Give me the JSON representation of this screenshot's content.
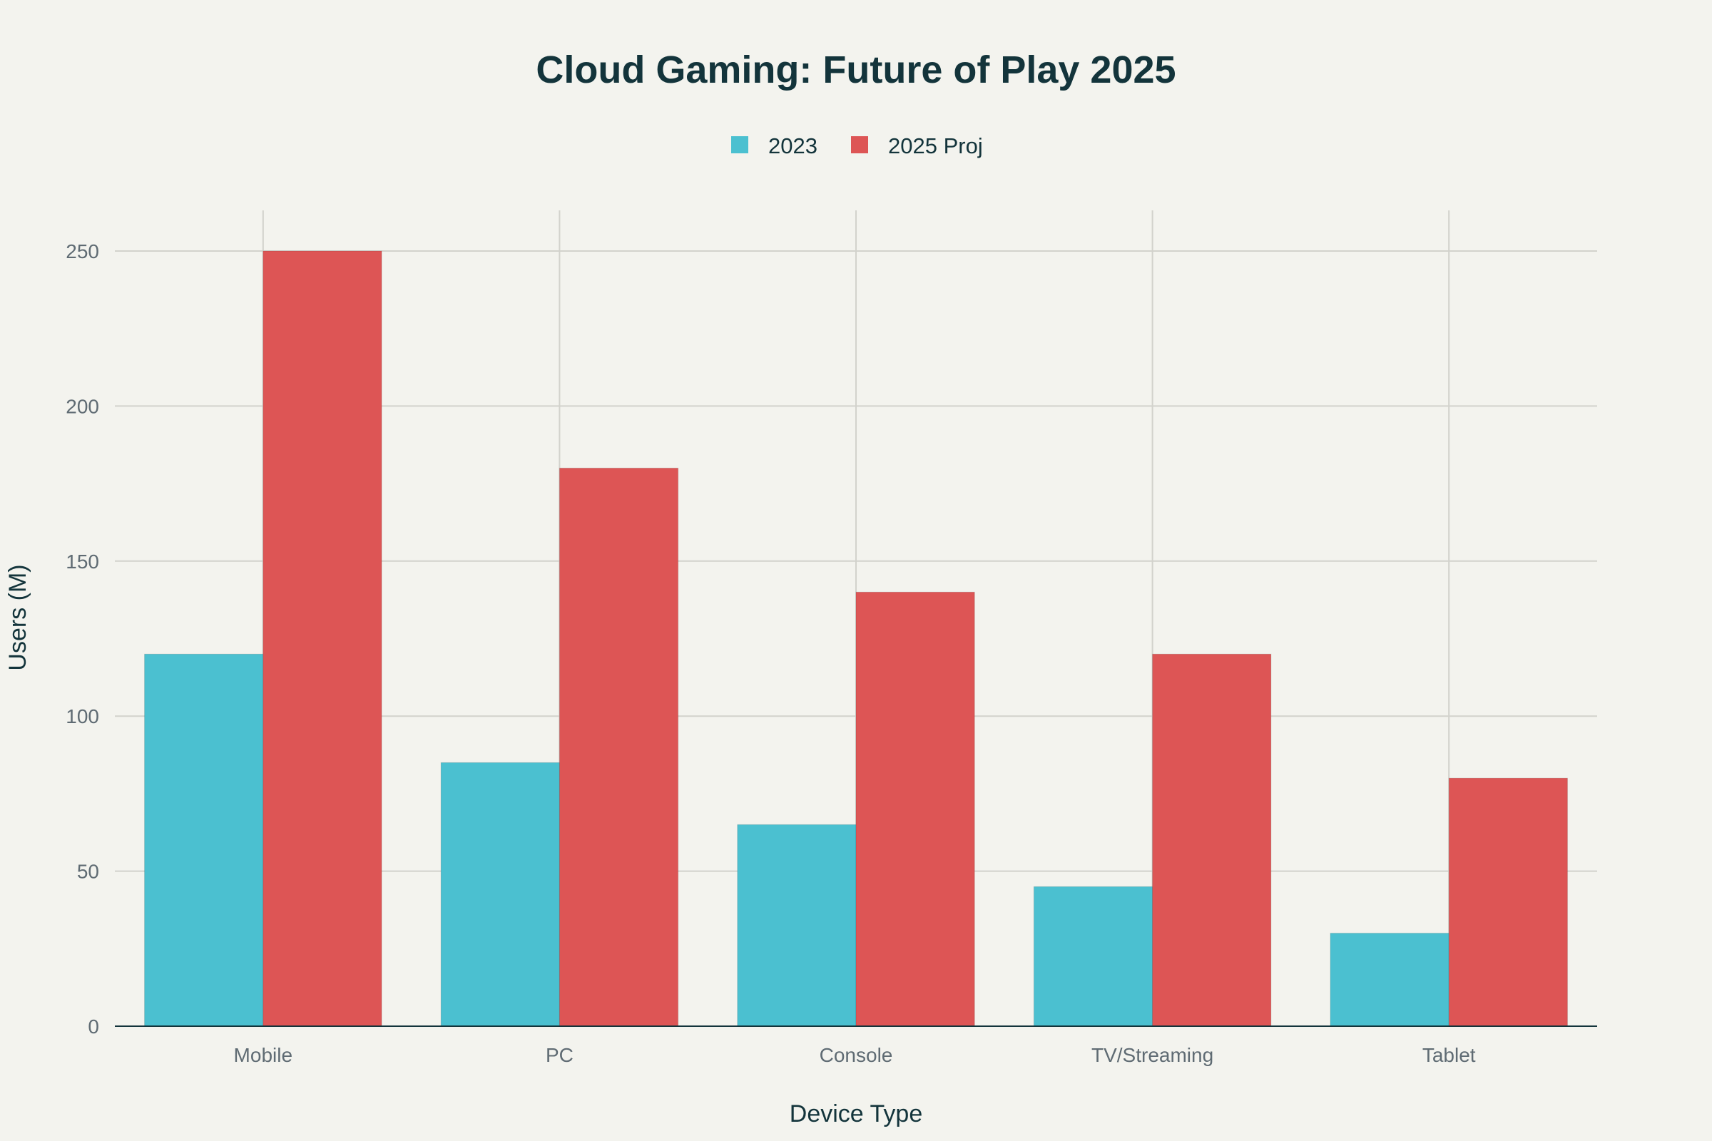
{
  "chart_data": {
    "type": "bar",
    "title": "Cloud Gaming: Future of Play 2025",
    "xlabel": "Device Type",
    "ylabel": "Users (M)",
    "categories": [
      "Mobile",
      "PC",
      "Console",
      "TV/Streaming",
      "Tablet"
    ],
    "series": [
      {
        "name": "2023",
        "values": [
          120,
          85,
          65,
          45,
          30
        ],
        "color": "#4bc0d0"
      },
      {
        "name": "2025 Proj",
        "values": [
          250,
          180,
          140,
          120,
          80
        ],
        "color": "#dd5555"
      }
    ],
    "ylim": [
      0,
      263
    ],
    "yticks": [
      0,
      50,
      100,
      150,
      200,
      250
    ],
    "grid": true,
    "legend_position": "top-center"
  }
}
